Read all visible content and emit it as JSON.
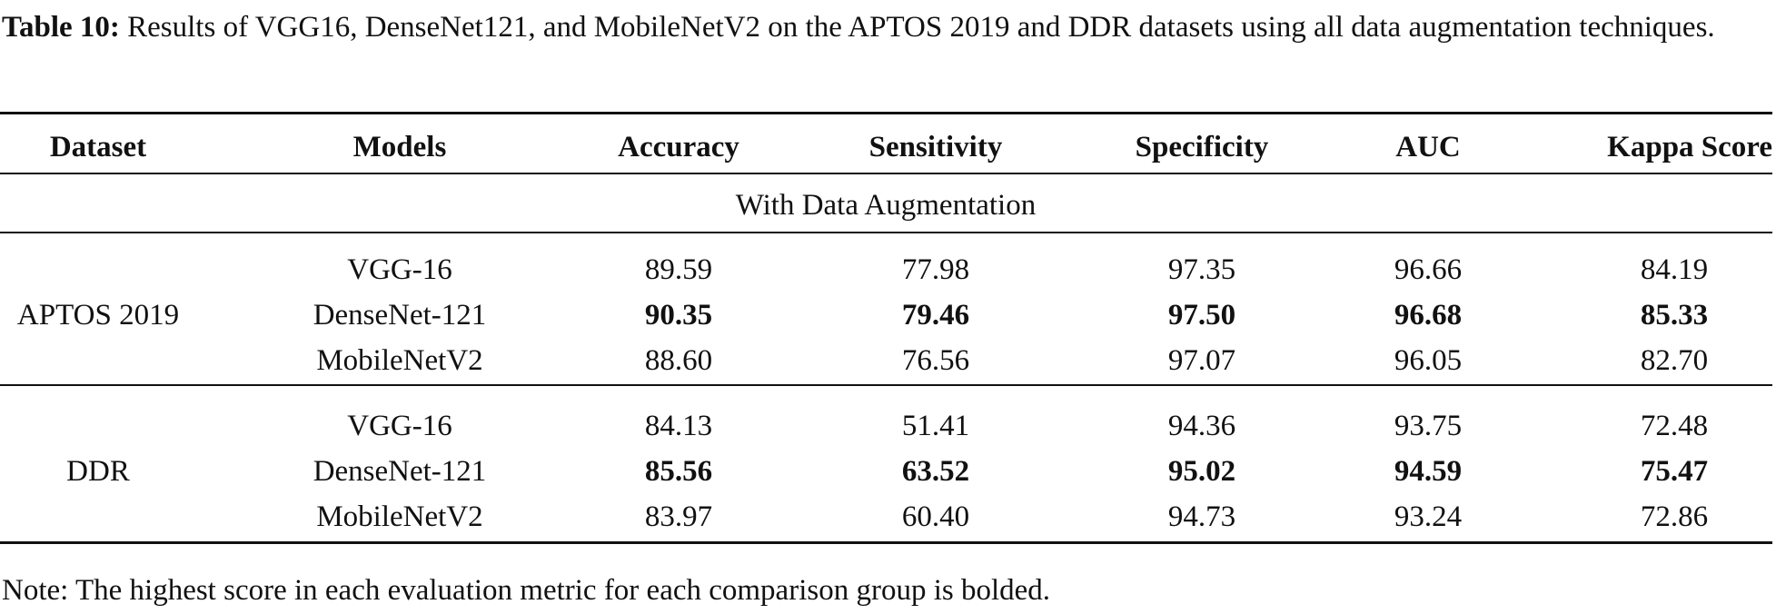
{
  "caption": {
    "label": "Table 10:",
    "text": "Results of VGG16, DenseNet121, and MobileNetV2 on the APTOS 2019 and DDR datasets using all data augmentation techniques."
  },
  "table": {
    "headers": [
      "Dataset",
      "Models",
      "Accuracy",
      "Sensitivity",
      "Specificity",
      "AUC",
      "Kappa Score"
    ],
    "subheader": "With Data Augmentation",
    "groups": [
      {
        "dataset": "APTOS 2019",
        "rows": [
          {
            "cells": [
              "VGG-16",
              "89.59",
              "77.98",
              "97.35",
              "96.66",
              "84.19"
            ],
            "bold": false
          },
          {
            "cells": [
              "DenseNet-121",
              "90.35",
              "79.46",
              "97.50",
              "96.68",
              "85.33"
            ],
            "bold": true
          },
          {
            "cells": [
              "MobileNetV2",
              "88.60",
              "76.56",
              "97.07",
              "96.05",
              "82.70"
            ],
            "bold": false
          }
        ]
      },
      {
        "dataset": "DDR",
        "rows": [
          {
            "cells": [
              "VGG-16",
              "84.13",
              "51.41",
              "94.36",
              "93.75",
              "72.48"
            ],
            "bold": false
          },
          {
            "cells": [
              "DenseNet-121",
              "85.56",
              "63.52",
              "95.02",
              "94.59",
              "75.47"
            ],
            "bold": true
          },
          {
            "cells": [
              "MobileNetV2",
              "83.97",
              "60.40",
              "94.73",
              "93.24",
              "72.86"
            ],
            "bold": false
          }
        ]
      }
    ]
  },
  "note": "Note: The highest score in each evaluation metric for each comparison group is bolded."
}
